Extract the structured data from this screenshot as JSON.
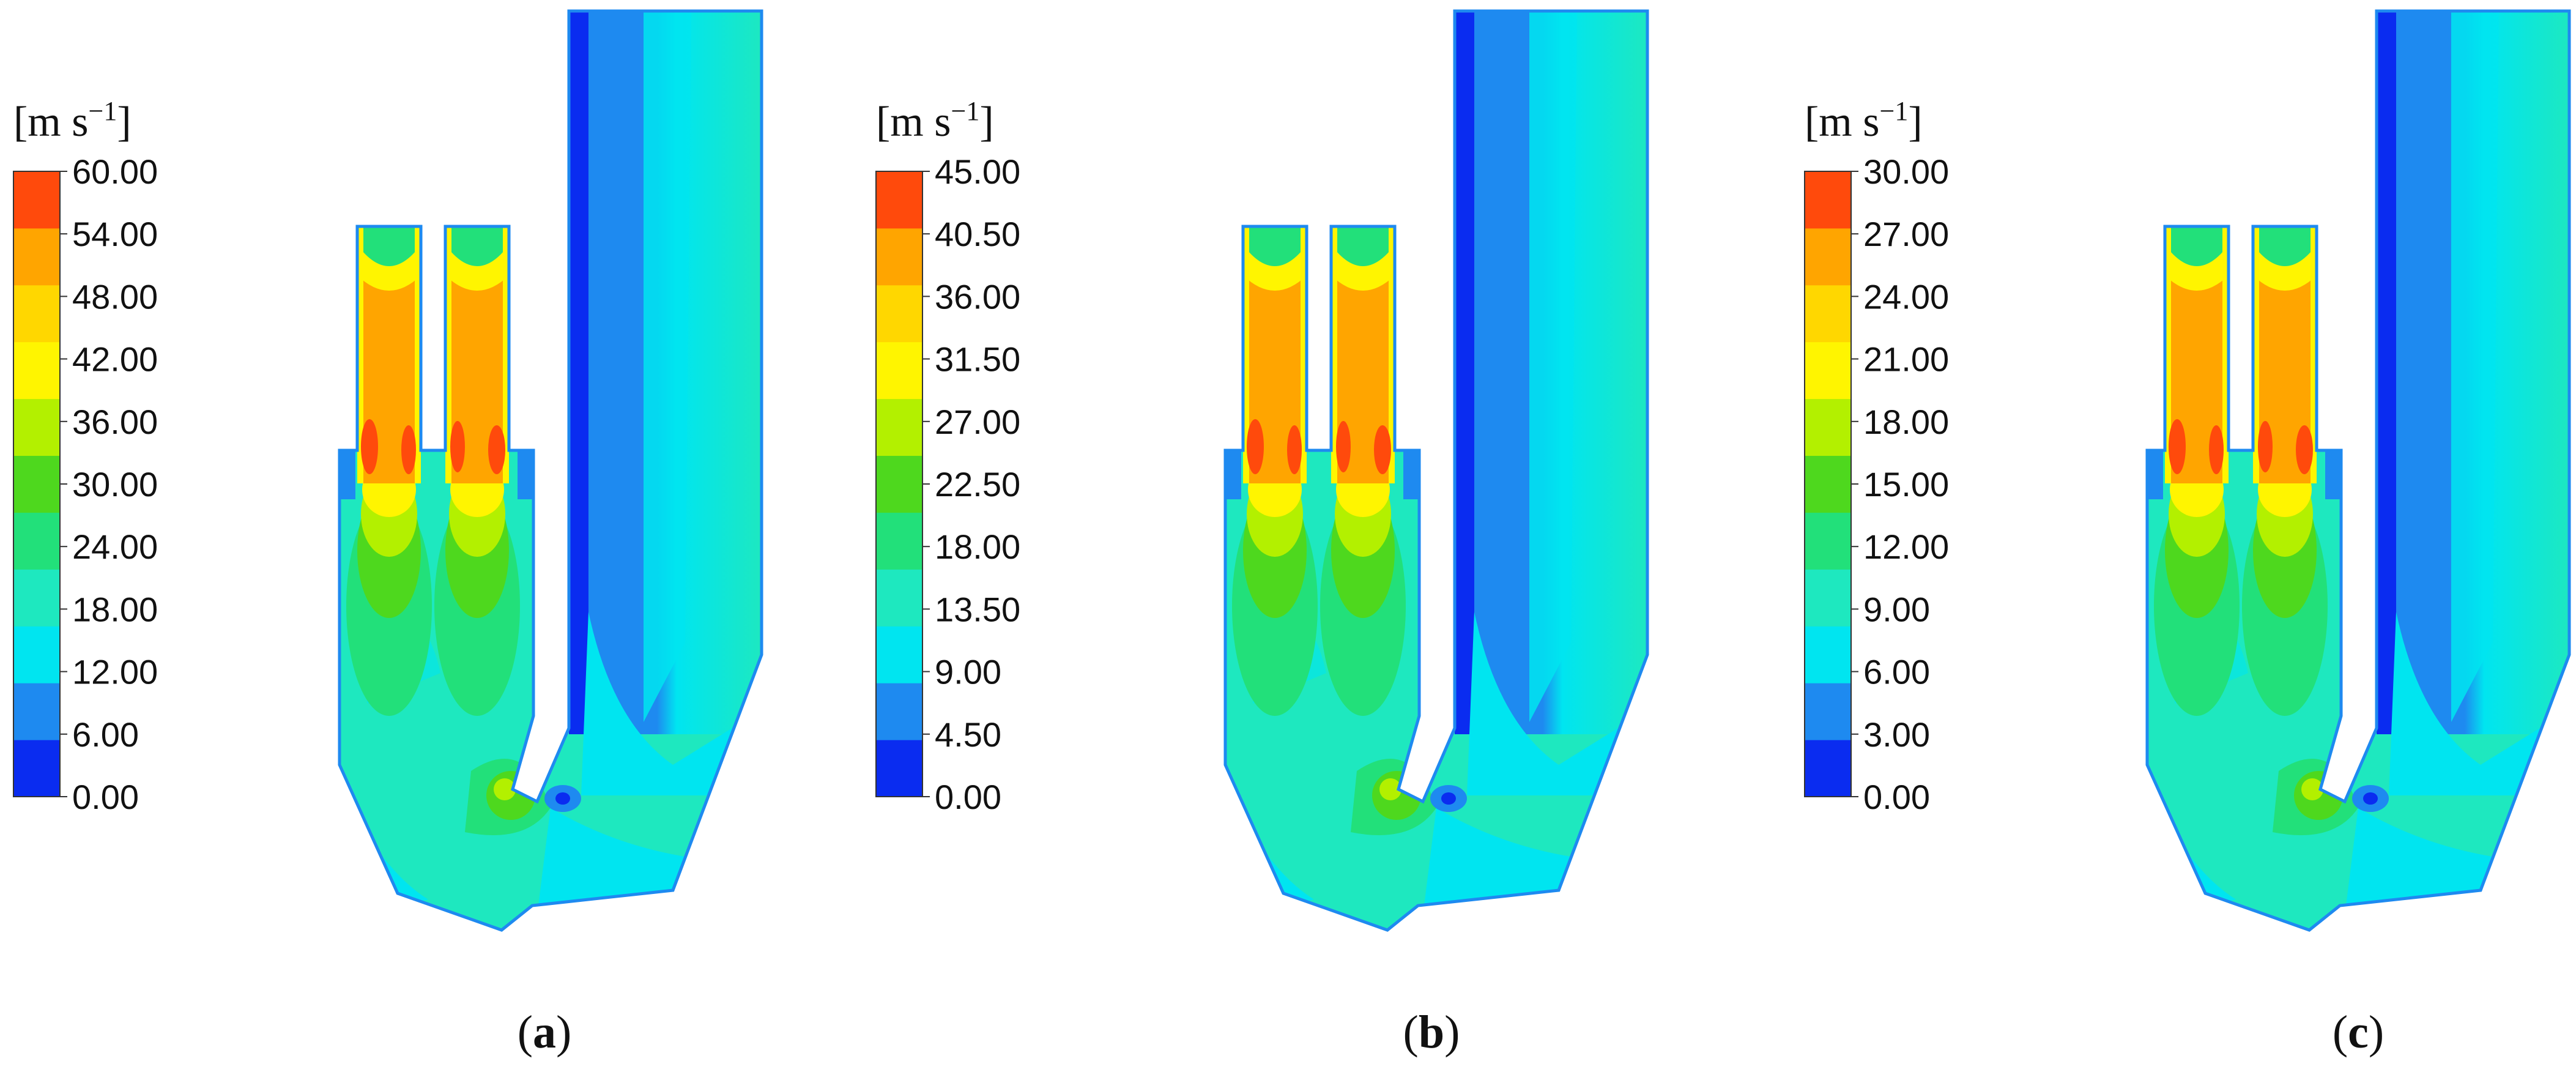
{
  "colorbar_colors": [
    "#0a2cf0",
    "#1e8af0",
    "#00e5f0",
    "#1ee8bf",
    "#22e07a",
    "#4ed81e",
    "#b3f000",
    "#fff500",
    "#ffd700",
    "#ffa500",
    "#ff4a0c"
  ],
  "panels": [
    {
      "label": "a",
      "unit_main": "[m s",
      "unit_sup": "−1",
      "unit_close": "]",
      "ticks": [
        "60.00",
        "54.00",
        "48.00",
        "42.00",
        "36.00",
        "30.00",
        "24.00",
        "18.00",
        "12.00",
        "6.00",
        "0.00"
      ]
    },
    {
      "label": "b",
      "unit_main": "[m s",
      "unit_sup": "−1",
      "unit_close": "]",
      "ticks": [
        "45.00",
        "40.50",
        "36.00",
        "31.50",
        "27.00",
        "22.50",
        "18.00",
        "13.50",
        "9.00",
        "4.50",
        "0.00"
      ]
    },
    {
      "label": "c",
      "unit_main": "[m s",
      "unit_sup": "−1",
      "unit_close": "]",
      "ticks": [
        "30.00",
        "27.00",
        "24.00",
        "21.00",
        "18.00",
        "15.00",
        "12.00",
        "9.00",
        "6.00",
        "3.00",
        "0.00"
      ]
    }
  ]
}
